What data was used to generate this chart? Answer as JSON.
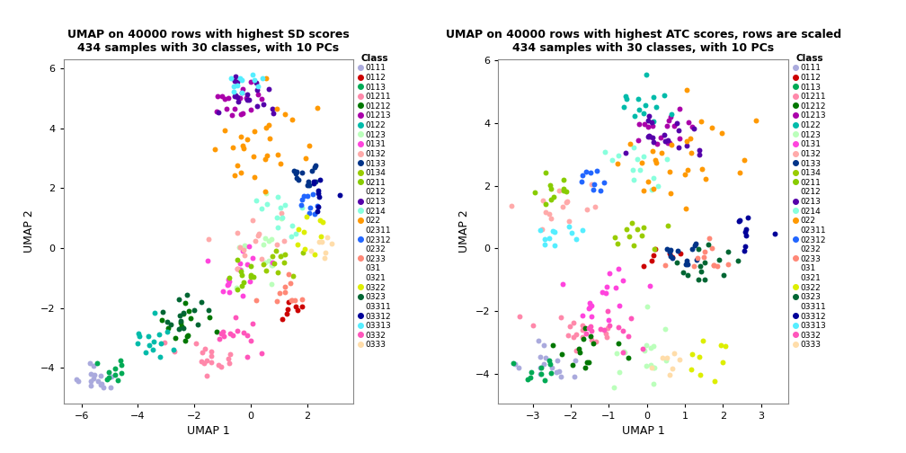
{
  "title1": "UMAP on 40000 rows with highest SD scores\n434 samples with 30 classes, with 10 PCs",
  "title2": "UMAP on 40000 rows with highest ATC scores, rows are scaled\n434 samples with 30 classes, with 10 PCs",
  "xlabel": "UMAP 1",
  "ylabel": "UMAP 2",
  "legend_title": "Class",
  "classes": [
    "0111",
    "0112",
    "0113",
    "01211",
    "01212",
    "01213",
    "0122",
    "0123",
    "0131",
    "0132",
    "0133",
    "0134",
    "0211",
    "0212",
    "0213",
    "0214",
    "022",
    "02311",
    "02312",
    "0232",
    "0233",
    "031",
    "0321",
    "0322",
    "0323",
    "03311",
    "03312",
    "03313",
    "0332",
    "0333"
  ],
  "class_colors": {
    "0111": "#AAAADD",
    "0112": "#CC0000",
    "0113": "#00AA55",
    "01211": "#FF88AA",
    "01212": "#007700",
    "01213": "#AA00AA",
    "0122": "#00BBAA",
    "0123": "#BBFFBB",
    "0131": "#FF44DD",
    "0132": "#FFAAAA",
    "0133": "#003388",
    "0134": "#99CC00",
    "0211": "#88CC00",
    "0212": null,
    "0213": "#5500AA",
    "0214": "#88FFDD",
    "022": "#FF9900",
    "02311": null,
    "02312": "#2266FF",
    "0232": null,
    "0233": "#FF8877",
    "031": null,
    "0321": null,
    "0322": "#DDEE00",
    "0323": "#006633",
    "03311": null,
    "03312": "#000099",
    "03313": "#55EEFF",
    "0332": "#FF55BB",
    "0333": "#FFDDAA"
  },
  "plot1_xlim": [
    -6.5,
    3.5
  ],
  "plot1_ylim": [
    -5.2,
    7.2
  ],
  "plot2_xlim": [
    -3.5,
    3.5
  ],
  "plot2_ylim": [
    -4.8,
    5.5
  ],
  "point_size": 18,
  "figsize": [
    10.08,
    5.04
  ],
  "dpi": 100
}
